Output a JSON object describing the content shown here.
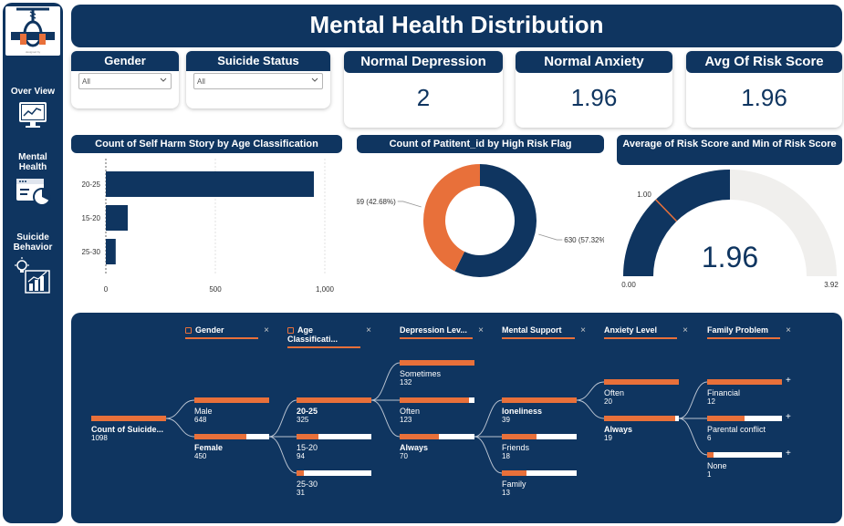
{
  "title": "Mental Health Distribution",
  "logo": {
    "caption": ""
  },
  "nav": [
    {
      "label": "Over View",
      "icon": "monitor-chart-icon"
    },
    {
      "label": "Mental Health",
      "icon": "browser-pie-icon"
    },
    {
      "label": "Suicide Behavior",
      "icon": "lightbulb-chart-icon"
    }
  ],
  "slicers": [
    {
      "title": "Gender",
      "value": "All"
    },
    {
      "title": "Suicide Status",
      "value": "All"
    }
  ],
  "kpis": [
    {
      "title": "Normal Depression",
      "value": "2"
    },
    {
      "title": "Normal Anxiety",
      "value": "1.96"
    },
    {
      "title": "Avg Of Risk Score",
      "value": "1.96"
    }
  ],
  "bar_chart": {
    "title": "Count of Self Harm Story by Age Classification",
    "chart_data": {
      "type": "bar",
      "orientation": "horizontal",
      "categories": [
        "20-25",
        "15-20",
        "25-30"
      ],
      "values": [
        950,
        100,
        45
      ],
      "xlim": [
        0,
        1000
      ],
      "xticks": [
        "0",
        "500",
        "1,000"
      ]
    }
  },
  "donut_chart": {
    "title": "Count of Patitent_id by High Risk Flag",
    "chart_data": {
      "type": "pie",
      "slices": [
        {
          "value": 630,
          "label": "630 (57.32%)",
          "color": "#0f3560"
        },
        {
          "value": 469,
          "label": "469 (42.68%)",
          "color": "#e8703a"
        }
      ]
    }
  },
  "gauge_chart": {
    "title": "Average of Risk Score and Min of Risk Score",
    "chart_data": {
      "type": "gauge",
      "value": 1.96,
      "value_label": "1.96",
      "min": 0,
      "max": 3.92,
      "min_label": "0.00",
      "max_label": "3.92",
      "target": 1.0,
      "target_label": "1.00"
    }
  },
  "decomposition_tree": {
    "headers": [
      "Gender",
      "Age Classificati...",
      "Depression Lev...",
      "Mental Support",
      "Anxiety Level",
      "Family Problem"
    ],
    "root": {
      "label": "Count of Suicide...",
      "value": "1098"
    },
    "levels": [
      [
        {
          "label": "Male",
          "value": "648",
          "fill": 1.0,
          "bold": false
        },
        {
          "label": "Female",
          "value": "450",
          "fill": 0.69,
          "bold": true
        }
      ],
      [
        {
          "label": "20-25",
          "value": "325",
          "fill": 1.0,
          "bold": true
        },
        {
          "label": "15-20",
          "value": "94",
          "fill": 0.29,
          "bold": false
        },
        {
          "label": "25-30",
          "value": "31",
          "fill": 0.1,
          "bold": false
        }
      ],
      [
        {
          "label": "Sometimes",
          "value": "132",
          "fill": 1.0,
          "bold": false
        },
        {
          "label": "Often",
          "value": "123",
          "fill": 0.93,
          "bold": false
        },
        {
          "label": "Always",
          "value": "70",
          "fill": 0.53,
          "bold": true
        }
      ],
      [
        {
          "label": "loneliness",
          "value": "39",
          "fill": 1.0,
          "bold": true
        },
        {
          "label": "Friends",
          "value": "18",
          "fill": 0.46,
          "bold": false
        },
        {
          "label": "Family",
          "value": "13",
          "fill": 0.33,
          "bold": false
        }
      ],
      [
        {
          "label": "Often",
          "value": "20",
          "fill": 1.0,
          "bold": false
        },
        {
          "label": "Always",
          "value": "19",
          "fill": 0.95,
          "bold": true
        }
      ],
      [
        {
          "label": "Financial",
          "value": "12",
          "fill": 1.0,
          "bold": false
        },
        {
          "label": "Parental conflict",
          "value": "6",
          "fill": 0.5,
          "bold": false
        },
        {
          "label": "None",
          "value": "1",
          "fill": 0.08,
          "bold": false
        }
      ]
    ]
  }
}
